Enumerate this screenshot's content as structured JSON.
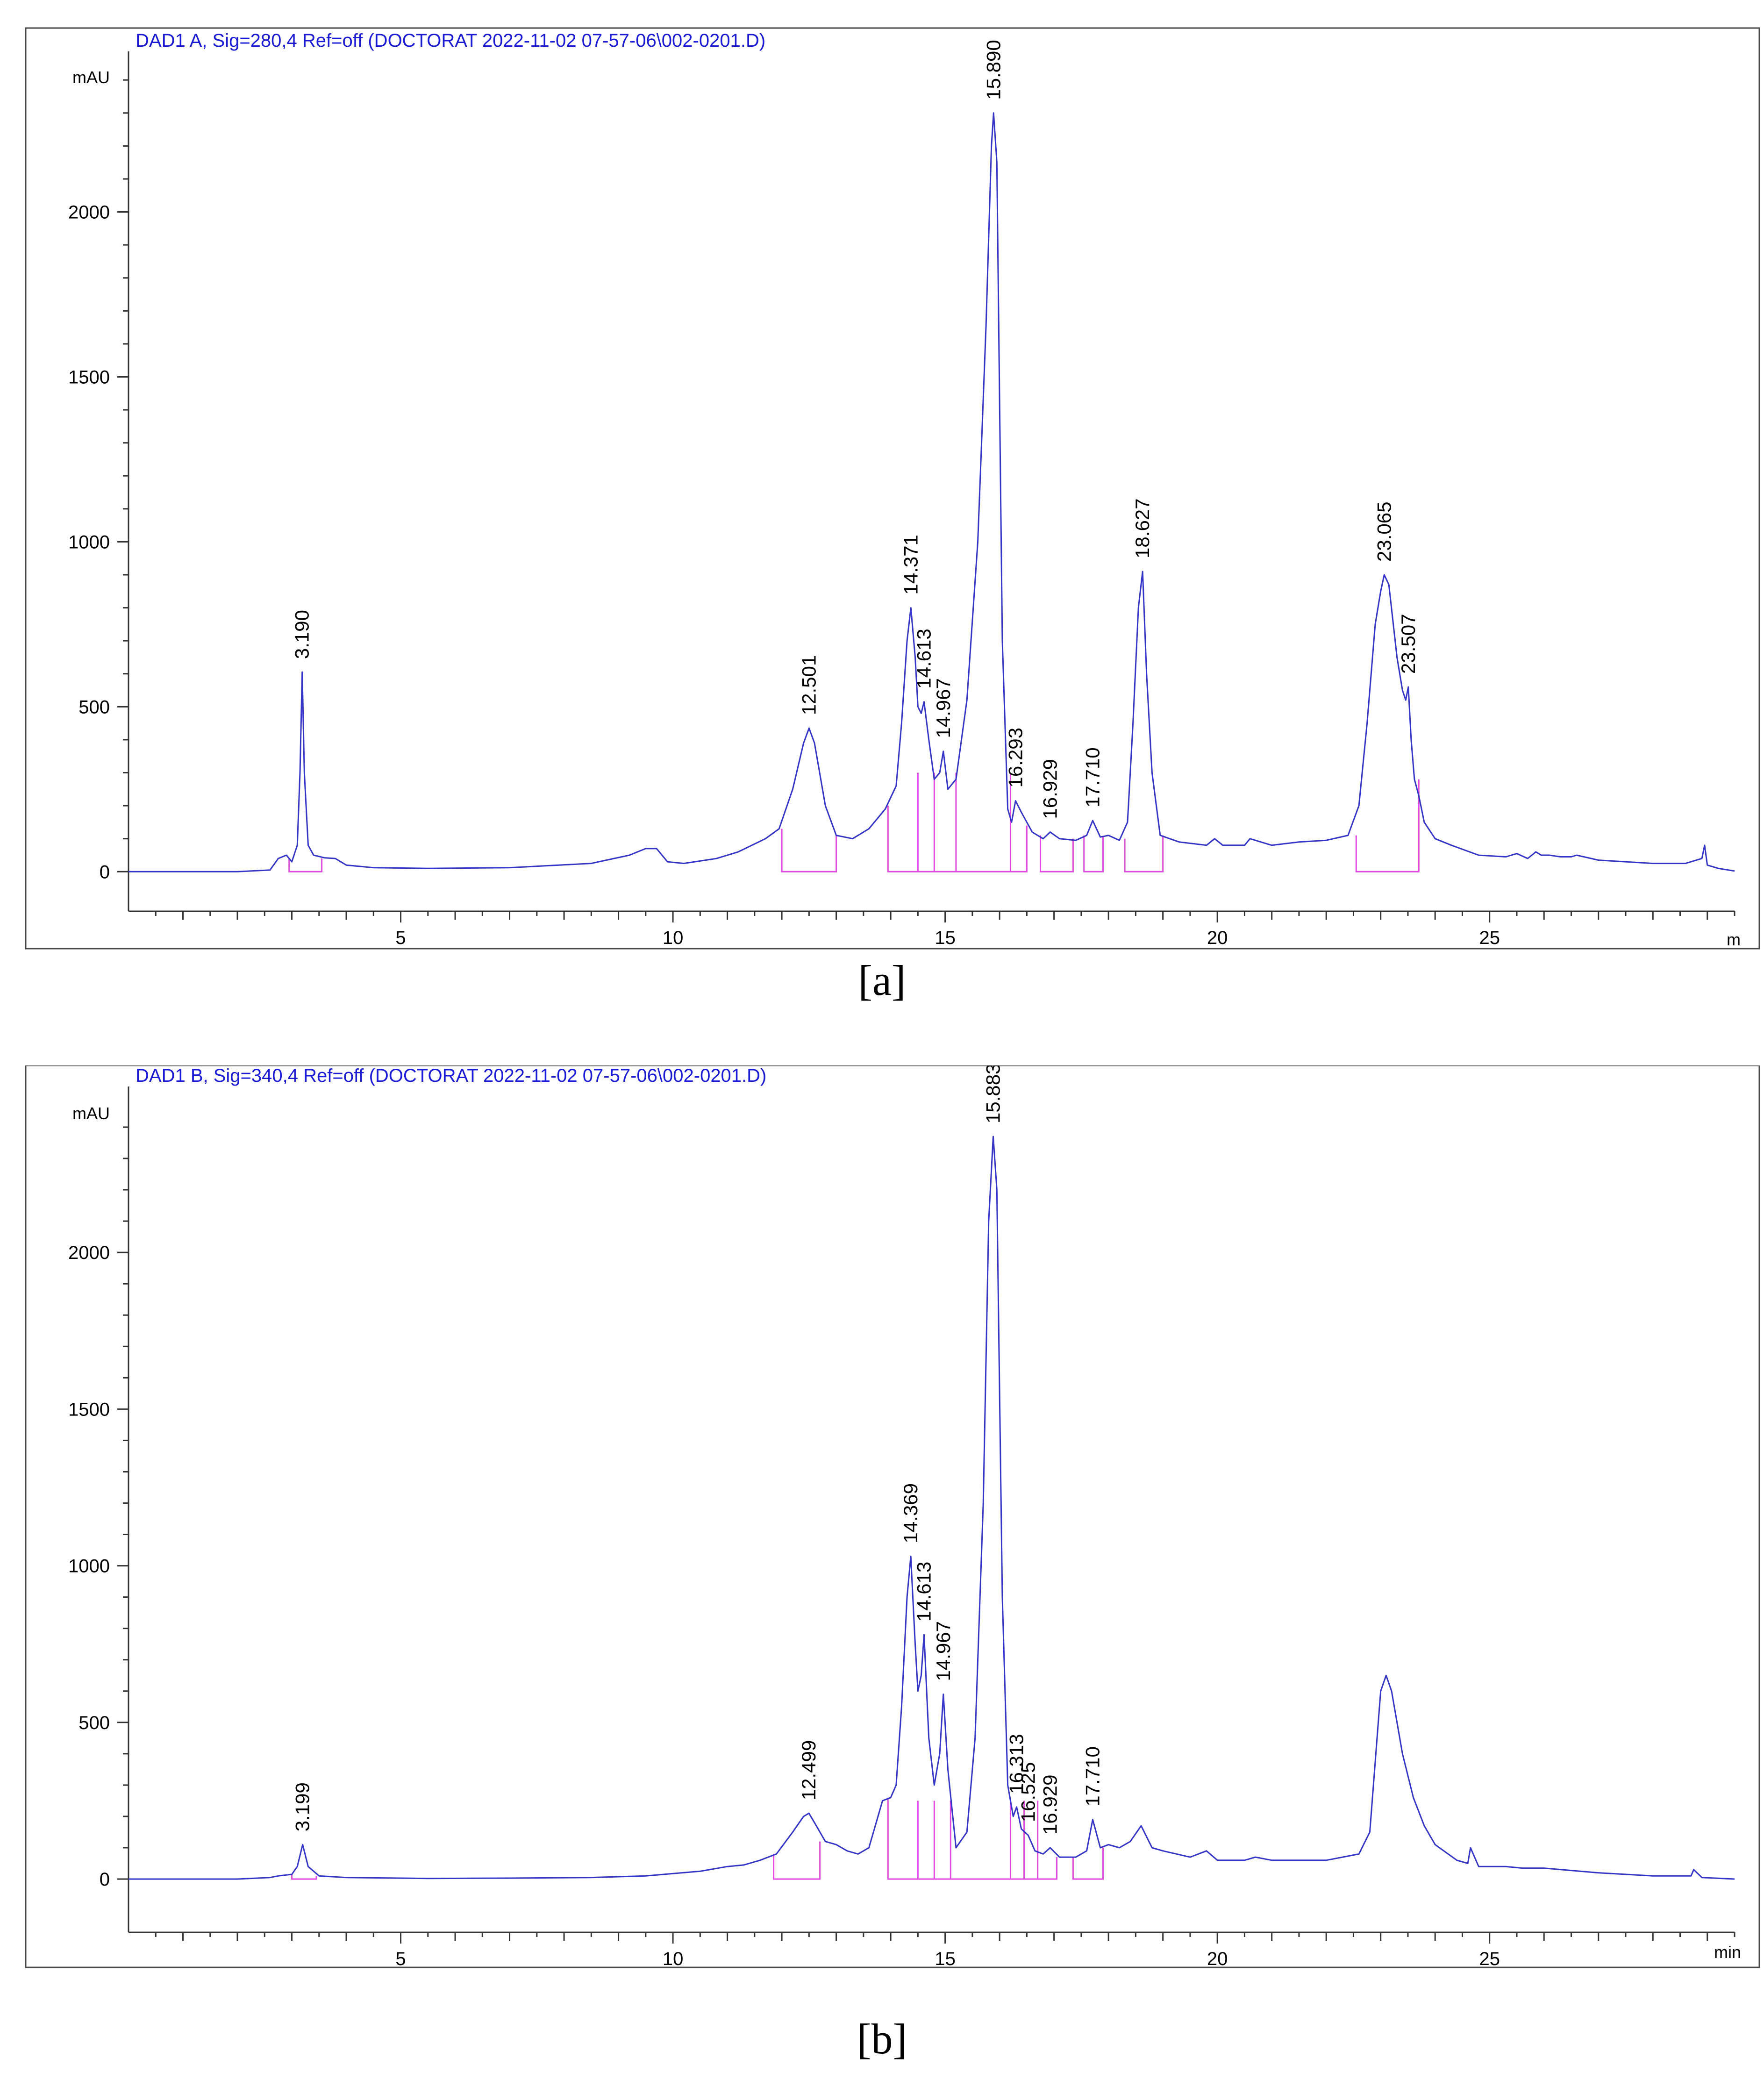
{
  "colors": {
    "trace": "#3535c8",
    "title": "#1b1bd6",
    "baseline": "#e04ae0"
  },
  "chart_data": [
    {
      "type": "line",
      "panel": "a",
      "caption": "[a]",
      "title": "DAD1 A, Sig=280,4 Ref=off (DOCTORAT 2022-11-02 07-57-06\\002-0201.D)",
      "ylabel": "mAU",
      "xlabel": "m",
      "xlim": [
        0,
        29.5
      ],
      "ylim": [
        -120,
        2430
      ],
      "xticks": [
        5,
        10,
        15,
        20,
        25
      ],
      "yticks": [
        0,
        500,
        1000,
        1500,
        2000
      ],
      "series": [
        {
          "x": [
            0,
            1,
            2,
            2.6,
            2.75,
            2.9,
            3.0,
            3.1,
            3.15,
            3.19,
            3.23,
            3.3,
            3.4,
            3.6,
            3.8,
            4.0,
            4.5,
            5.5,
            7,
            8.5,
            9.2,
            9.5,
            9.7,
            9.9,
            10.2,
            10.8,
            11.2,
            11.7,
            11.95,
            12.2,
            12.4,
            12.5,
            12.6,
            12.8,
            13.0,
            13.3,
            13.6,
            13.9,
            14.1,
            14.2,
            14.3,
            14.371,
            14.45,
            14.5,
            14.56,
            14.613,
            14.7,
            14.8,
            14.9,
            14.967,
            15.05,
            15.2,
            15.4,
            15.6,
            15.75,
            15.85,
            15.89,
            15.95,
            16.05,
            16.15,
            16.22,
            16.293,
            16.4,
            16.6,
            16.8,
            16.929,
            17.1,
            17.4,
            17.6,
            17.71,
            17.85,
            18.0,
            18.2,
            18.35,
            18.45,
            18.55,
            18.627,
            18.7,
            18.8,
            18.95,
            19.3,
            19.8,
            19.95,
            20.1,
            20.5,
            20.6,
            20.8,
            21.0,
            21.5,
            22.0,
            22.4,
            22.6,
            22.75,
            22.9,
            23.0,
            23.065,
            23.15,
            23.3,
            23.4,
            23.46,
            23.507,
            23.56,
            23.62,
            23.7,
            23.8,
            24.0,
            24.3,
            24.8,
            25.3,
            25.5,
            25.7,
            25.85,
            25.95,
            26.1,
            26.3,
            26.5,
            26.6,
            27.0,
            27.5,
            28.0,
            28.6,
            28.9,
            28.95,
            29.0,
            29.2,
            29.5
          ],
          "y": [
            0,
            0,
            0,
            5,
            40,
            50,
            30,
            80,
            300,
            605,
            300,
            80,
            50,
            42,
            40,
            20,
            12,
            10,
            12,
            25,
            50,
            70,
            70,
            30,
            25,
            40,
            60,
            100,
            130,
            250,
            390,
            435,
            390,
            200,
            110,
            100,
            130,
            190,
            260,
            450,
            700,
            800,
            650,
            500,
            480,
            515,
            400,
            280,
            300,
            365,
            250,
            280,
            520,
            1000,
            1650,
            2200,
            2300,
            2150,
            700,
            190,
            150,
            215,
            180,
            120,
            100,
            120,
            100,
            95,
            110,
            155,
            105,
            110,
            95,
            150,
            450,
            800,
            910,
            600,
            300,
            110,
            90,
            80,
            100,
            80,
            80,
            100,
            90,
            80,
            90,
            95,
            110,
            200,
            450,
            750,
            850,
            900,
            870,
            650,
            550,
            520,
            560,
            400,
            280,
            230,
            150,
            100,
            80,
            50,
            45,
            55,
            40,
            60,
            50,
            50,
            45,
            45,
            50,
            35,
            30,
            25,
            25,
            40,
            80,
            20,
            10,
            2
          ]
        }
      ],
      "annotations": [
        {
          "x": 3.19,
          "y": 605,
          "label": "3.190"
        },
        {
          "x": 12.501,
          "y": 435,
          "label": "12.501"
        },
        {
          "x": 14.371,
          "y": 800,
          "label": "14.371"
        },
        {
          "x": 14.613,
          "y": 515,
          "label": "14.613"
        },
        {
          "x": 14.967,
          "y": 365,
          "label": "14.967"
        },
        {
          "x": 15.89,
          "y": 2300,
          "label": "15.890"
        },
        {
          "x": 16.293,
          "y": 215,
          "label": "16.293"
        },
        {
          "x": 16.929,
          "y": 120,
          "label": "16.929"
        },
        {
          "x": 17.71,
          "y": 155,
          "label": "17.710"
        },
        {
          "x": 18.627,
          "y": 910,
          "label": "18.627"
        },
        {
          "x": 23.065,
          "y": 900,
          "label": "23.065"
        },
        {
          "x": 23.507,
          "y": 560,
          "label": "23.507"
        }
      ],
      "integration_baselines": [
        {
          "x": [
            2.95,
            3.55
          ],
          "ys": 40,
          "ye": 40
        },
        {
          "x": [
            12.0,
            13.0
          ],
          "ys": 130,
          "ye": 110
        },
        {
          "x": [
            13.95,
            16.5
          ],
          "ys": 200,
          "ye": 140
        },
        {
          "x": [
            16.75,
            17.35
          ],
          "ys": 110,
          "ye": 100
        },
        {
          "x": [
            17.55,
            17.9
          ],
          "ys": 110,
          "ye": 105
        },
        {
          "x": [
            18.3,
            19.0
          ],
          "ys": 100,
          "ye": 110
        },
        {
          "x": [
            22.55,
            23.7
          ],
          "ys": 110,
          "ye": 280
        }
      ],
      "peak_splits": [
        14.5,
        14.8,
        15.2,
        16.2
      ]
    },
    {
      "type": "line",
      "panel": "b",
      "caption": "[b]",
      "title": "DAD1 B, Sig=340,4 Ref=off (DOCTORAT 2022-11-02 07-57-06\\002-0201.D)",
      "ylabel": "mAU",
      "xlabel": "min",
      "xlim": [
        0,
        29.5
      ],
      "ylim": [
        -170,
        2470
      ],
      "xticks": [
        5,
        10,
        15,
        20,
        25
      ],
      "yticks": [
        0,
        500,
        1000,
        1500,
        2000
      ],
      "series": [
        {
          "x": [
            0,
            1,
            2,
            2.6,
            2.75,
            3.0,
            3.1,
            3.199,
            3.3,
            3.5,
            4.0,
            5.5,
            7,
            8.5,
            9.5,
            10.5,
            11.0,
            11.3,
            11.6,
            11.9,
            12.2,
            12.4,
            12.499,
            12.6,
            12.8,
            13.0,
            13.2,
            13.4,
            13.6,
            13.85,
            14.0,
            14.1,
            14.2,
            14.3,
            14.369,
            14.45,
            14.5,
            14.56,
            14.613,
            14.7,
            14.8,
            14.9,
            14.967,
            15.05,
            15.2,
            15.4,
            15.55,
            15.7,
            15.8,
            15.883,
            15.95,
            16.05,
            16.15,
            16.25,
            16.313,
            16.4,
            16.525,
            16.65,
            16.8,
            16.929,
            17.1,
            17.4,
            17.6,
            17.71,
            17.85,
            18.0,
            18.2,
            18.4,
            18.6,
            18.8,
            19.0,
            19.5,
            19.8,
            20.0,
            20.5,
            20.7,
            21.0,
            22.0,
            22.6,
            22.8,
            23.0,
            23.1,
            23.2,
            23.4,
            23.6,
            23.8,
            24.0,
            24.4,
            24.6,
            24.65,
            24.8,
            25.3,
            25.6,
            26.0,
            27.0,
            28.0,
            28.7,
            28.75,
            28.9,
            29.5
          ],
          "y": [
            0,
            0,
            0,
            5,
            10,
            15,
            40,
            110,
            40,
            10,
            5,
            2,
            3,
            5,
            10,
            25,
            40,
            45,
            60,
            80,
            150,
            200,
            210,
            180,
            120,
            110,
            90,
            80,
            100,
            250,
            260,
            300,
            550,
            900,
            1030,
            750,
            600,
            650,
            780,
            450,
            300,
            400,
            590,
            350,
            100,
            150,
            450,
            1200,
            2100,
            2370,
            2200,
            900,
            300,
            200,
            230,
            160,
            140,
            90,
            80,
            100,
            70,
            70,
            90,
            190,
            100,
            110,
            100,
            120,
            170,
            100,
            90,
            70,
            90,
            60,
            60,
            70,
            60,
            60,
            80,
            150,
            600,
            650,
            600,
            400,
            260,
            170,
            110,
            60,
            50,
            100,
            40,
            40,
            35,
            35,
            20,
            10,
            10,
            30,
            5,
            0
          ]
        }
      ],
      "annotations": [
        {
          "x": 3.199,
          "y": 110,
          "label": "3.199"
        },
        {
          "x": 12.499,
          "y": 210,
          "label": "12.499"
        },
        {
          "x": 14.369,
          "y": 1030,
          "label": "14.369"
        },
        {
          "x": 14.613,
          "y": 780,
          "label": "14.613"
        },
        {
          "x": 14.967,
          "y": 590,
          "label": "14.967"
        },
        {
          "x": 15.883,
          "y": 2370,
          "label": "15.883"
        },
        {
          "x": 16.313,
          "y": 230,
          "label": "16.313"
        },
        {
          "x": 16.525,
          "y": 140,
          "label": "16.525"
        },
        {
          "x": 16.929,
          "y": 100,
          "label": "16.929"
        },
        {
          "x": 17.71,
          "y": 190,
          "label": "17.710"
        }
      ],
      "integration_baselines": [
        {
          "x": [
            3.0,
            3.45
          ],
          "ys": 15,
          "ye": 10
        },
        {
          "x": [
            11.85,
            12.7
          ],
          "ys": 80,
          "ye": 120
        },
        {
          "x": [
            13.95,
            17.05
          ],
          "ys": 260,
          "ye": 70
        },
        {
          "x": [
            17.35,
            17.9
          ],
          "ys": 70,
          "ye": 100
        }
      ],
      "peak_splits": [
        14.5,
        14.8,
        15.1,
        16.2,
        16.45,
        16.7
      ]
    }
  ]
}
